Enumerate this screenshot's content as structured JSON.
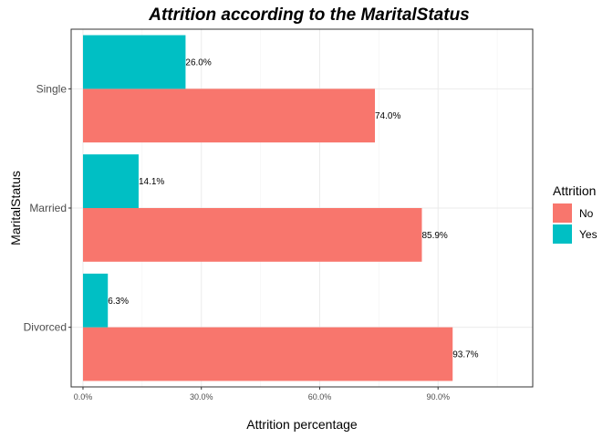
{
  "chart_data": {
    "type": "bar",
    "orientation": "horizontal",
    "title": "Attrition according to the MaritalStatus",
    "xlabel": "Attrition percentage",
    "ylabel": "MaritalStatus",
    "categories": [
      "Divorced",
      "Married",
      "Single"
    ],
    "series": [
      {
        "name": "No",
        "color": "#F8766D",
        "values": [
          93.7,
          85.9,
          74.0
        ],
        "labels": [
          "93.7%",
          "85.9%",
          "74.0%"
        ]
      },
      {
        "name": "Yes",
        "color": "#00BFC4",
        "values": [
          6.3,
          14.1,
          26.0
        ],
        "labels": [
          "6.3%",
          "14.1%",
          "26.0%"
        ]
      }
    ],
    "xlim": [
      -3,
      114
    ],
    "xticks": [
      0,
      30,
      60,
      90
    ],
    "xtick_labels": [
      "0.0%",
      "30.0%",
      "60.0%",
      "90.0%"
    ],
    "legend_title": "Attrition",
    "legend_position": "right",
    "grid": true
  }
}
